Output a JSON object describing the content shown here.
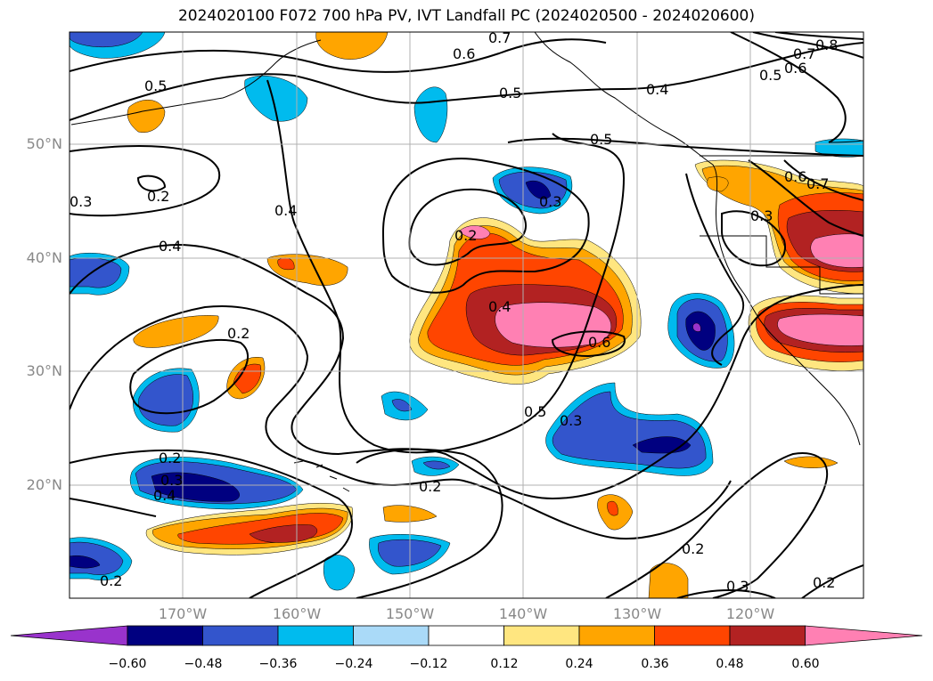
{
  "title": "2024020100 F072 700 hPa PV, IVT Landfall PC (2024020500 - 2024020600)",
  "latitude_labels": [
    "50°N",
    "40°N",
    "30°N",
    "20°N"
  ],
  "longitude_labels": [
    "170°W",
    "160°W",
    "150°W",
    "140°W",
    "130°W",
    "120°W"
  ],
  "colorbar": {
    "ticks": [
      "−0.60",
      "−0.48",
      "−0.36",
      "−0.24",
      "−0.12",
      "0.12",
      "0.24",
      "0.36",
      "0.48",
      "0.60"
    ],
    "colors": [
      "#9933cc",
      "#000080",
      "#3355cc",
      "#00bbee",
      "#aadaf8",
      "#ffffff",
      "#ffe680",
      "#ffa500",
      "#ff4500",
      "#b22222",
      "#ff80b3"
    ]
  },
  "contour_labels": [
    "0.7",
    "0.6",
    "0.5",
    "0.5",
    "0.4",
    "0.8",
    "0.7",
    "0.6",
    "0.5",
    "0.5",
    "0.2",
    "0.3",
    "0.4",
    "0.3",
    "0.2",
    "0.6",
    "0.7",
    "0.3",
    "0.4",
    "0.2",
    "0.4",
    "0.6",
    "0.2",
    "0.5",
    "0.3",
    "0.3",
    "0.4",
    "0.2",
    "0.2",
    "0.2",
    "0.3",
    "0.2"
  ]
}
